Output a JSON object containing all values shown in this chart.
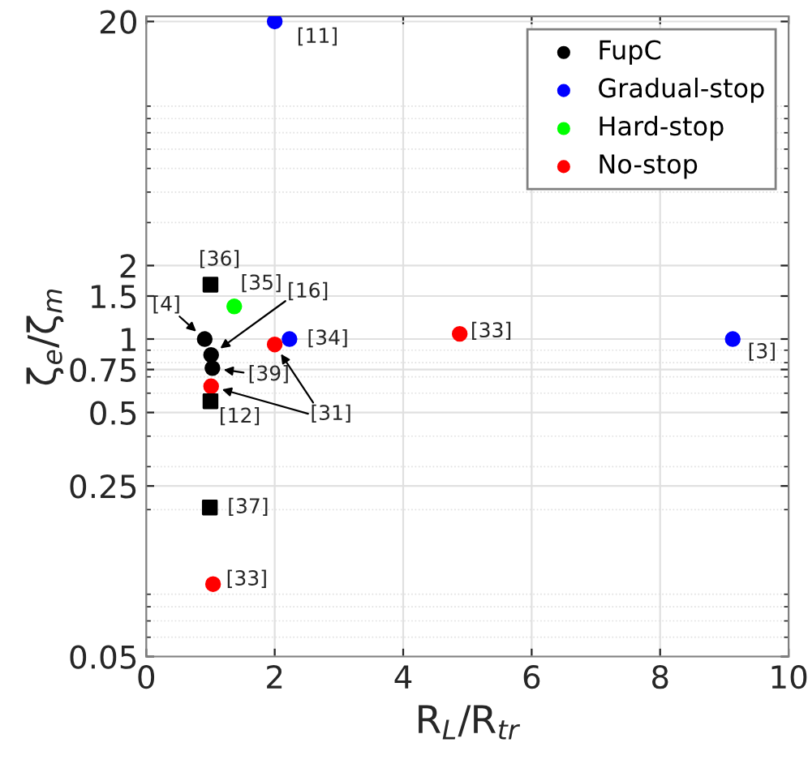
{
  "chart_data": {
    "type": "scatter",
    "xlabel": "R$_{L}$/R$_{tr}$",
    "ylabel": "ζ$_{e}$/ζ$_{m}$",
    "log": "y",
    "xlim": [
      0,
      10
    ],
    "ylim": [
      0.05,
      21
    ],
    "xticks": [
      0,
      2,
      4,
      6,
      8,
      10
    ],
    "yticks": [
      0.05,
      0.25,
      0.5,
      0.75,
      1,
      1.5,
      2,
      20
    ],
    "grid": true,
    "legend": "top right",
    "marker": "circle",
    "series": [
      {
        "name": "FupC",
        "color": "#000000",
        "x": [
          0.91,
          1.01,
          1.03
        ],
        "values": [
          1.0,
          0.86,
          0.76
        ]
      },
      {
        "name": "Gradual-stop",
        "color": "#0000ff",
        "x": [
          2.0,
          2.23,
          9.13
        ],
        "values": [
          20,
          1.0,
          1.0
        ]
      },
      {
        "name": "Hard-stop",
        "color": "#00ff00",
        "x": [
          1.37
        ],
        "values": [
          1.36
        ]
      },
      {
        "name": "No-stop",
        "color": "#ff0000",
        "x": [
          2.0,
          1.01,
          1.04,
          4.88
        ],
        "values": [
          0.95,
          0.64,
          0.099,
          1.05
        ]
      },
      {
        "color": "#000000",
        "marker": "square",
        "x": [
          1.0,
          1.0,
          0.99
        ],
        "values": [
          1.67,
          0.556,
          0.204
        ]
      }
    ],
    "annotations": [
      {
        "text": "[11]",
        "x": 2.0,
        "y": 20
      },
      {
        "text": "[36]",
        "x": 1.0,
        "y": 1.67
      },
      {
        "text": "[35]",
        "x": 1.37,
        "y": 1.36
      },
      {
        "text": "[4]",
        "x": 0.91,
        "y": 1.0
      },
      {
        "text": "[16]",
        "x": 1.01,
        "y": 0.86
      },
      {
        "text": "[34]",
        "x": 2.23,
        "y": 1.0
      },
      {
        "text": "[39]",
        "x": 1.03,
        "y": 0.76
      },
      {
        "text": "[31]",
        "x": 2.0,
        "y": 0.95
      },
      {
        "text": "[12]",
        "x": 1.0,
        "y": 0.556
      },
      {
        "text": "[37]",
        "x": 0.99,
        "y": 0.204
      },
      {
        "text": "[33]",
        "x": 1.04,
        "y": 0.099
      },
      {
        "text": "[33]",
        "x": 4.88,
        "y": 1.05
      },
      {
        "text": "[3]",
        "x": 9.13,
        "y": 1.0
      }
    ]
  }
}
